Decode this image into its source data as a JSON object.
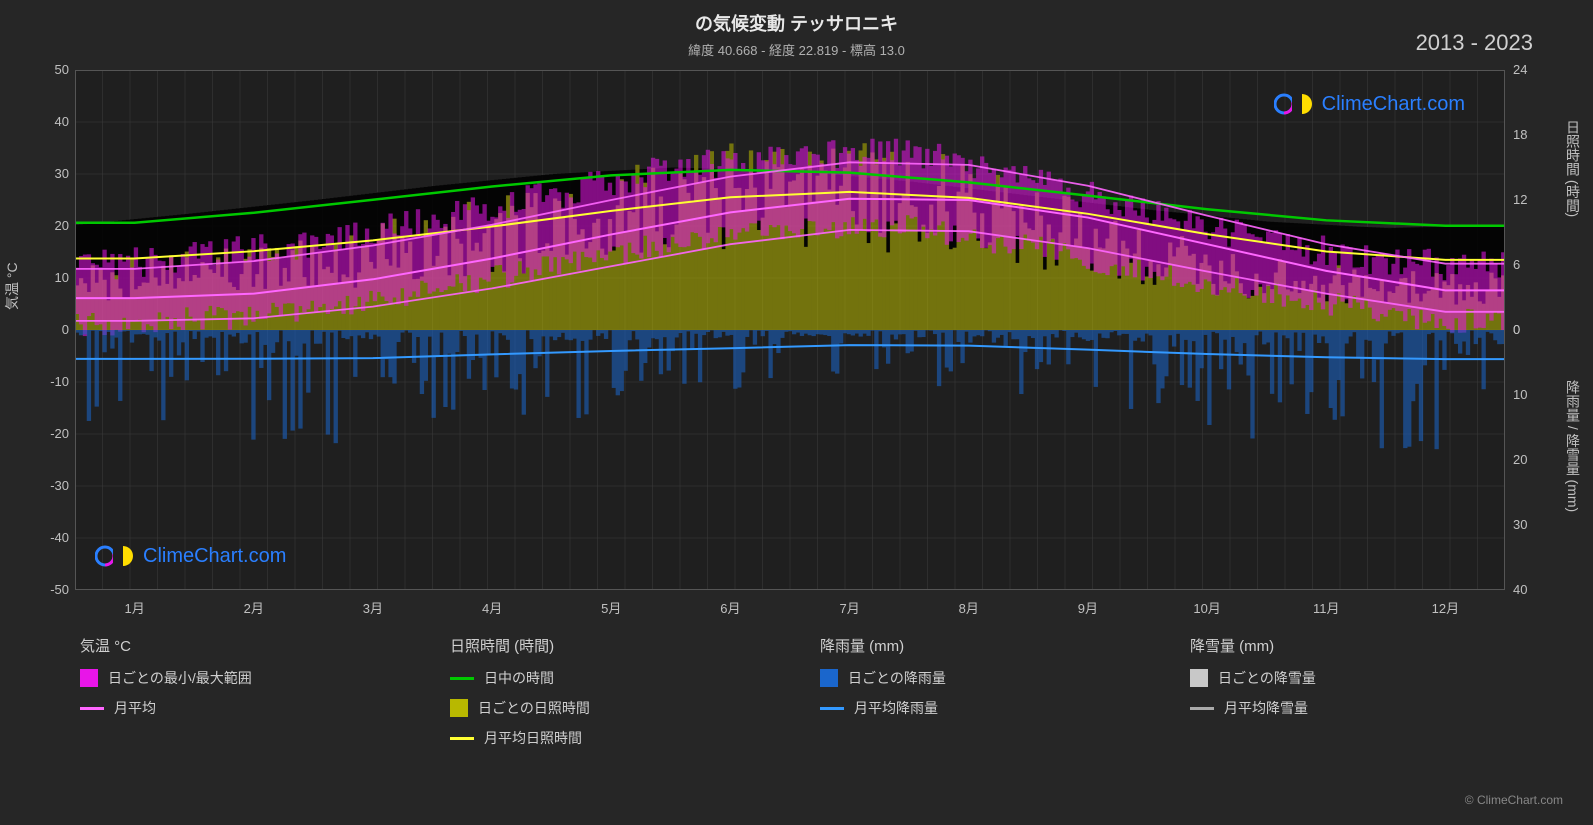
{
  "title": "の気候変動 テッサロニキ",
  "subtitle": "緯度 40.668 - 経度 22.819 - 標高 13.0",
  "period": "2013 - 2023",
  "watermark_text": "ClimeChart.com",
  "footer_credit": "© ClimeChart.com",
  "chart": {
    "type": "climate-composite",
    "background_color": "#1f1f1f",
    "page_background": "#262626",
    "grid_color": "#3a3a3a",
    "text_color": "#c0c0c0",
    "title_fontsize": 18,
    "subtitle_fontsize": 13,
    "tick_fontsize": 13,
    "left_axis": {
      "label": "気温 °C",
      "min": -50,
      "max": 50,
      "ticks": [
        -50,
        -40,
        -30,
        -20,
        -10,
        0,
        10,
        20,
        30,
        40,
        50
      ]
    },
    "right_axis_top": {
      "label": "日照時間 (時間)",
      "min": 0,
      "max": 24,
      "ticks": [
        0,
        6,
        12,
        18,
        24
      ]
    },
    "right_axis_bottom": {
      "label": "降雨量 / 降雪量 (mm)",
      "min": 0,
      "max": 40,
      "ticks": [
        0,
        10,
        20,
        30,
        40
      ]
    },
    "x_axis": {
      "labels": [
        "1月",
        "2月",
        "3月",
        "4月",
        "5月",
        "6月",
        "7月",
        "8月",
        "9月",
        "10月",
        "11月",
        "12月"
      ]
    },
    "series": {
      "temp_range": {
        "color": "#e815e8",
        "fill_opacity": 0.55,
        "min_values": [
          1,
          2,
          4,
          8,
          12,
          17,
          20,
          20,
          16,
          11,
          7,
          3
        ],
        "max_values": [
          11,
          13,
          16,
          20,
          25,
          30,
          33,
          33,
          28,
          22,
          16,
          12
        ]
      },
      "temp_avg": {
        "color": "#ff66ff",
        "line_width": 2,
        "values": [
          5.5,
          6.5,
          9.5,
          13.5,
          18.5,
          23,
          26,
          26,
          22,
          16.5,
          11,
          7
        ]
      },
      "daylight": {
        "color": "#00c800",
        "line_width": 2.5,
        "values": [
          9.7,
          10.8,
          12.0,
          13.3,
          14.4,
          15.0,
          14.7,
          13.7,
          12.4,
          11.1,
          10.0,
          9.4
        ]
      },
      "sun_bars": {
        "color": "#b8b800",
        "fill_opacity": 0.55,
        "values": [
          4.0,
          5.0,
          6.0,
          7.5,
          9.0,
          11.0,
          12.0,
          11.5,
          9.0,
          6.5,
          4.5,
          3.8
        ]
      },
      "sun_avg": {
        "color": "#ffff33",
        "line_width": 2,
        "values": [
          6.5,
          7.2,
          8.2,
          9.5,
          11.0,
          12.5,
          13.0,
          12.5,
          10.8,
          8.8,
          7.0,
          6.2
        ]
      },
      "rain_bars": {
        "color": "#1a66cc",
        "fill_opacity": 0.55,
        "avg_values": [
          4.5,
          4.0,
          4.5,
          3.8,
          3.5,
          3.0,
          2.0,
          2.2,
          3.0,
          4.0,
          4.5,
          4.8
        ]
      },
      "rain_avg": {
        "color": "#3399ff",
        "line_width": 2,
        "values": [
          4.5,
          4.2,
          4.8,
          3.5,
          3.2,
          3.0,
          2.0,
          2.3,
          3.0,
          3.8,
          4.2,
          4.6
        ]
      },
      "snow_bars": {
        "color": "#c8c8c8",
        "fill_opacity": 0.4
      },
      "snow_avg": {
        "color": "#aaaaaa",
        "line_width": 2
      }
    }
  },
  "legend": {
    "groups": [
      {
        "header": "気温 °C",
        "items": [
          {
            "swatch_type": "block",
            "color": "#e815e8",
            "label": "日ごとの最小/最大範囲"
          },
          {
            "swatch_type": "line",
            "color": "#ff66ff",
            "label": "月平均"
          }
        ]
      },
      {
        "header": "日照時間 (時間)",
        "items": [
          {
            "swatch_type": "line",
            "color": "#00c800",
            "label": "日中の時間"
          },
          {
            "swatch_type": "block",
            "color": "#b8b800",
            "label": "日ごとの日照時間"
          },
          {
            "swatch_type": "line",
            "color": "#ffff33",
            "label": "月平均日照時間"
          }
        ]
      },
      {
        "header": "降雨量 (mm)",
        "items": [
          {
            "swatch_type": "block",
            "color": "#1a66cc",
            "label": "日ごとの降雨量"
          },
          {
            "swatch_type": "line",
            "color": "#3399ff",
            "label": "月平均降雨量"
          }
        ]
      },
      {
        "header": "降雪量 (mm)",
        "items": [
          {
            "swatch_type": "block",
            "color": "#c8c8c8",
            "label": "日ごとの降雪量"
          },
          {
            "swatch_type": "line",
            "color": "#aaaaaa",
            "label": "月平均降雪量"
          }
        ]
      }
    ]
  }
}
